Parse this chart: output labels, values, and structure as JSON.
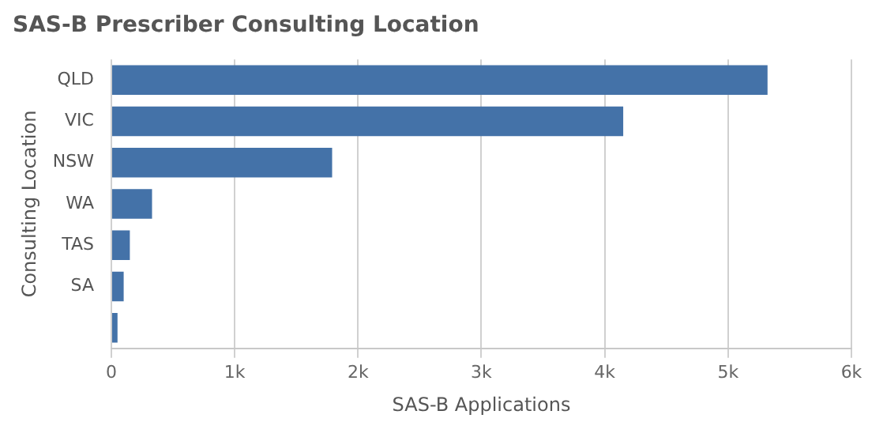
{
  "chart_data": {
    "type": "bar",
    "orientation": "horizontal",
    "title": "SAS-B Prescriber Consulting Location",
    "xlabel": "SAS-B Applications",
    "ylabel": "Consulting Location",
    "categories": [
      "QLD",
      "VIC",
      "NSW",
      "WA",
      "TAS",
      "SA",
      null
    ],
    "values": [
      5320,
      4150,
      1790,
      330,
      150,
      100,
      50
    ],
    "color": "#4472a8",
    "xlim": [
      0,
      6000
    ],
    "xticks": [
      0,
      {
        "value": 1000,
        "label": "1k"
      },
      {
        "value": 2000,
        "label": "2k"
      },
      {
        "value": 3000,
        "label": "3k"
      },
      {
        "value": 4000,
        "label": "4k"
      },
      {
        "value": 5000,
        "label": "5k"
      },
      {
        "value": 6000,
        "label": "6k"
      }
    ],
    "grid": "x",
    "legend": false
  }
}
